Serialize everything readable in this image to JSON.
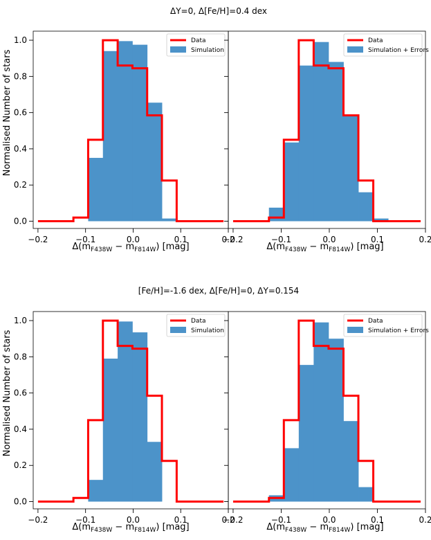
{
  "figure": {
    "row_titles": [
      "ΔY=0, Δ[Fe/H]=0.4 dex",
      "[Fe/H]=-1.6 dex, Δ[Fe/H]=0, ΔY=0.154"
    ],
    "ylabel": "Normalised Number of stars",
    "xlabel_prefix": "Δ(m",
    "xlabel_sub1": "F438W",
    "xlabel_mid": " − m",
    "xlabel_sub2": "F814W",
    "xlabel_suffix": ") [mag]",
    "xticks": [
      "−0.2",
      "−0.1",
      "0.0",
      "0.1",
      "0.2"
    ],
    "yticks": [
      "0.0",
      "0.2",
      "0.4",
      "0.6",
      "0.8",
      "1.0"
    ]
  },
  "colors": {
    "data": "#ff0000",
    "sim": "#4c93c9"
  },
  "chart_data": [
    {
      "type": "bar",
      "title": "ΔY=0, Δ[Fe/H]=0.4 dex",
      "xlabel": "Δ(mF438W − mF814W) [mag]",
      "ylabel": "Normalised Number of stars",
      "xlim": [
        -0.21,
        0.2
      ],
      "ylim": [
        -0.04,
        1.05
      ],
      "legend": {
        "position": "top-right",
        "entries": [
          "Data",
          "Simulation"
        ]
      },
      "bin_edges": [
        -0.1255,
        -0.0945,
        -0.0635,
        -0.0325,
        -0.0015,
        0.0295,
        0.0605,
        0.0915
      ],
      "sim_values": [
        0.0,
        0.35,
        0.94,
        0.995,
        0.975,
        0.655,
        0.015
      ],
      "data_step": {
        "edges": [
          -0.2,
          -0.1255,
          -0.0945,
          -0.0635,
          -0.0325,
          -0.0015,
          0.0295,
          0.0605,
          0.0915,
          0.19
        ],
        "values": [
          0.0,
          0.02,
          0.45,
          1.0,
          0.86,
          0.845,
          0.585,
          0.225,
          0.0
        ]
      }
    },
    {
      "type": "bar",
      "title": "ΔY=0, Δ[Fe/H]=0.4 dex",
      "xlabel": "Δ(mF438W − mF814W) [mag]",
      "xlim": [
        -0.21,
        0.2
      ],
      "ylim": [
        -0.04,
        1.05
      ],
      "legend": {
        "position": "top-right",
        "entries": [
          "Data",
          "Simulation + Errors"
        ]
      },
      "bin_edges": [
        -0.1255,
        -0.0945,
        -0.0635,
        -0.0325,
        -0.0015,
        0.0295,
        0.0605,
        0.0915,
        0.1225
      ],
      "sim_values": [
        0.075,
        0.435,
        0.86,
        0.99,
        0.88,
        0.585,
        0.16,
        0.015
      ],
      "data_step": {
        "edges": [
          -0.2,
          -0.1255,
          -0.0945,
          -0.0635,
          -0.0325,
          -0.0015,
          0.0295,
          0.0605,
          0.0915,
          0.19
        ],
        "values": [
          0.0,
          0.02,
          0.45,
          1.0,
          0.86,
          0.845,
          0.585,
          0.225,
          0.0
        ]
      }
    },
    {
      "type": "bar",
      "title": "[Fe/H]=-1.6 dex, Δ[Fe/H]=0, ΔY=0.154",
      "xlabel": "Δ(mF438W − mF814W) [mag]",
      "ylabel": "Normalised Number of stars",
      "xlim": [
        -0.21,
        0.2
      ],
      "ylim": [
        -0.04,
        1.05
      ],
      "legend": {
        "position": "top-right",
        "entries": [
          "Data",
          "Simulation"
        ]
      },
      "bin_edges": [
        -0.1255,
        -0.0945,
        -0.0635,
        -0.0325,
        -0.0015,
        0.0295,
        0.0605,
        0.0915
      ],
      "sim_values": [
        0.0,
        0.12,
        0.79,
        0.995,
        0.935,
        0.33,
        0.0
      ],
      "data_step": {
        "edges": [
          -0.2,
          -0.1255,
          -0.0945,
          -0.0635,
          -0.0325,
          -0.0015,
          0.0295,
          0.0605,
          0.0915,
          0.19
        ],
        "values": [
          0.0,
          0.02,
          0.45,
          1.0,
          0.86,
          0.845,
          0.585,
          0.225,
          0.0
        ]
      }
    },
    {
      "type": "bar",
      "title": "[Fe/H]=-1.6 dex, Δ[Fe/H]=0, ΔY=0.154",
      "xlabel": "Δ(mF438W − mF814W) [mag]",
      "xlim": [
        -0.21,
        0.2
      ],
      "ylim": [
        -0.04,
        1.05
      ],
      "legend": {
        "position": "top-right",
        "entries": [
          "Data",
          "Simulation + Errors"
        ]
      },
      "bin_edges": [
        -0.1255,
        -0.0945,
        -0.0635,
        -0.0325,
        -0.0015,
        0.0295,
        0.0605,
        0.0915
      ],
      "sim_values": [
        0.035,
        0.295,
        0.755,
        0.99,
        0.9,
        0.445,
        0.08
      ],
      "data_step": {
        "edges": [
          -0.2,
          -0.1255,
          -0.0945,
          -0.0635,
          -0.0325,
          -0.0015,
          0.0295,
          0.0605,
          0.0915,
          0.19
        ],
        "values": [
          0.0,
          0.02,
          0.45,
          1.0,
          0.86,
          0.845,
          0.585,
          0.225,
          0.0
        ]
      }
    }
  ]
}
